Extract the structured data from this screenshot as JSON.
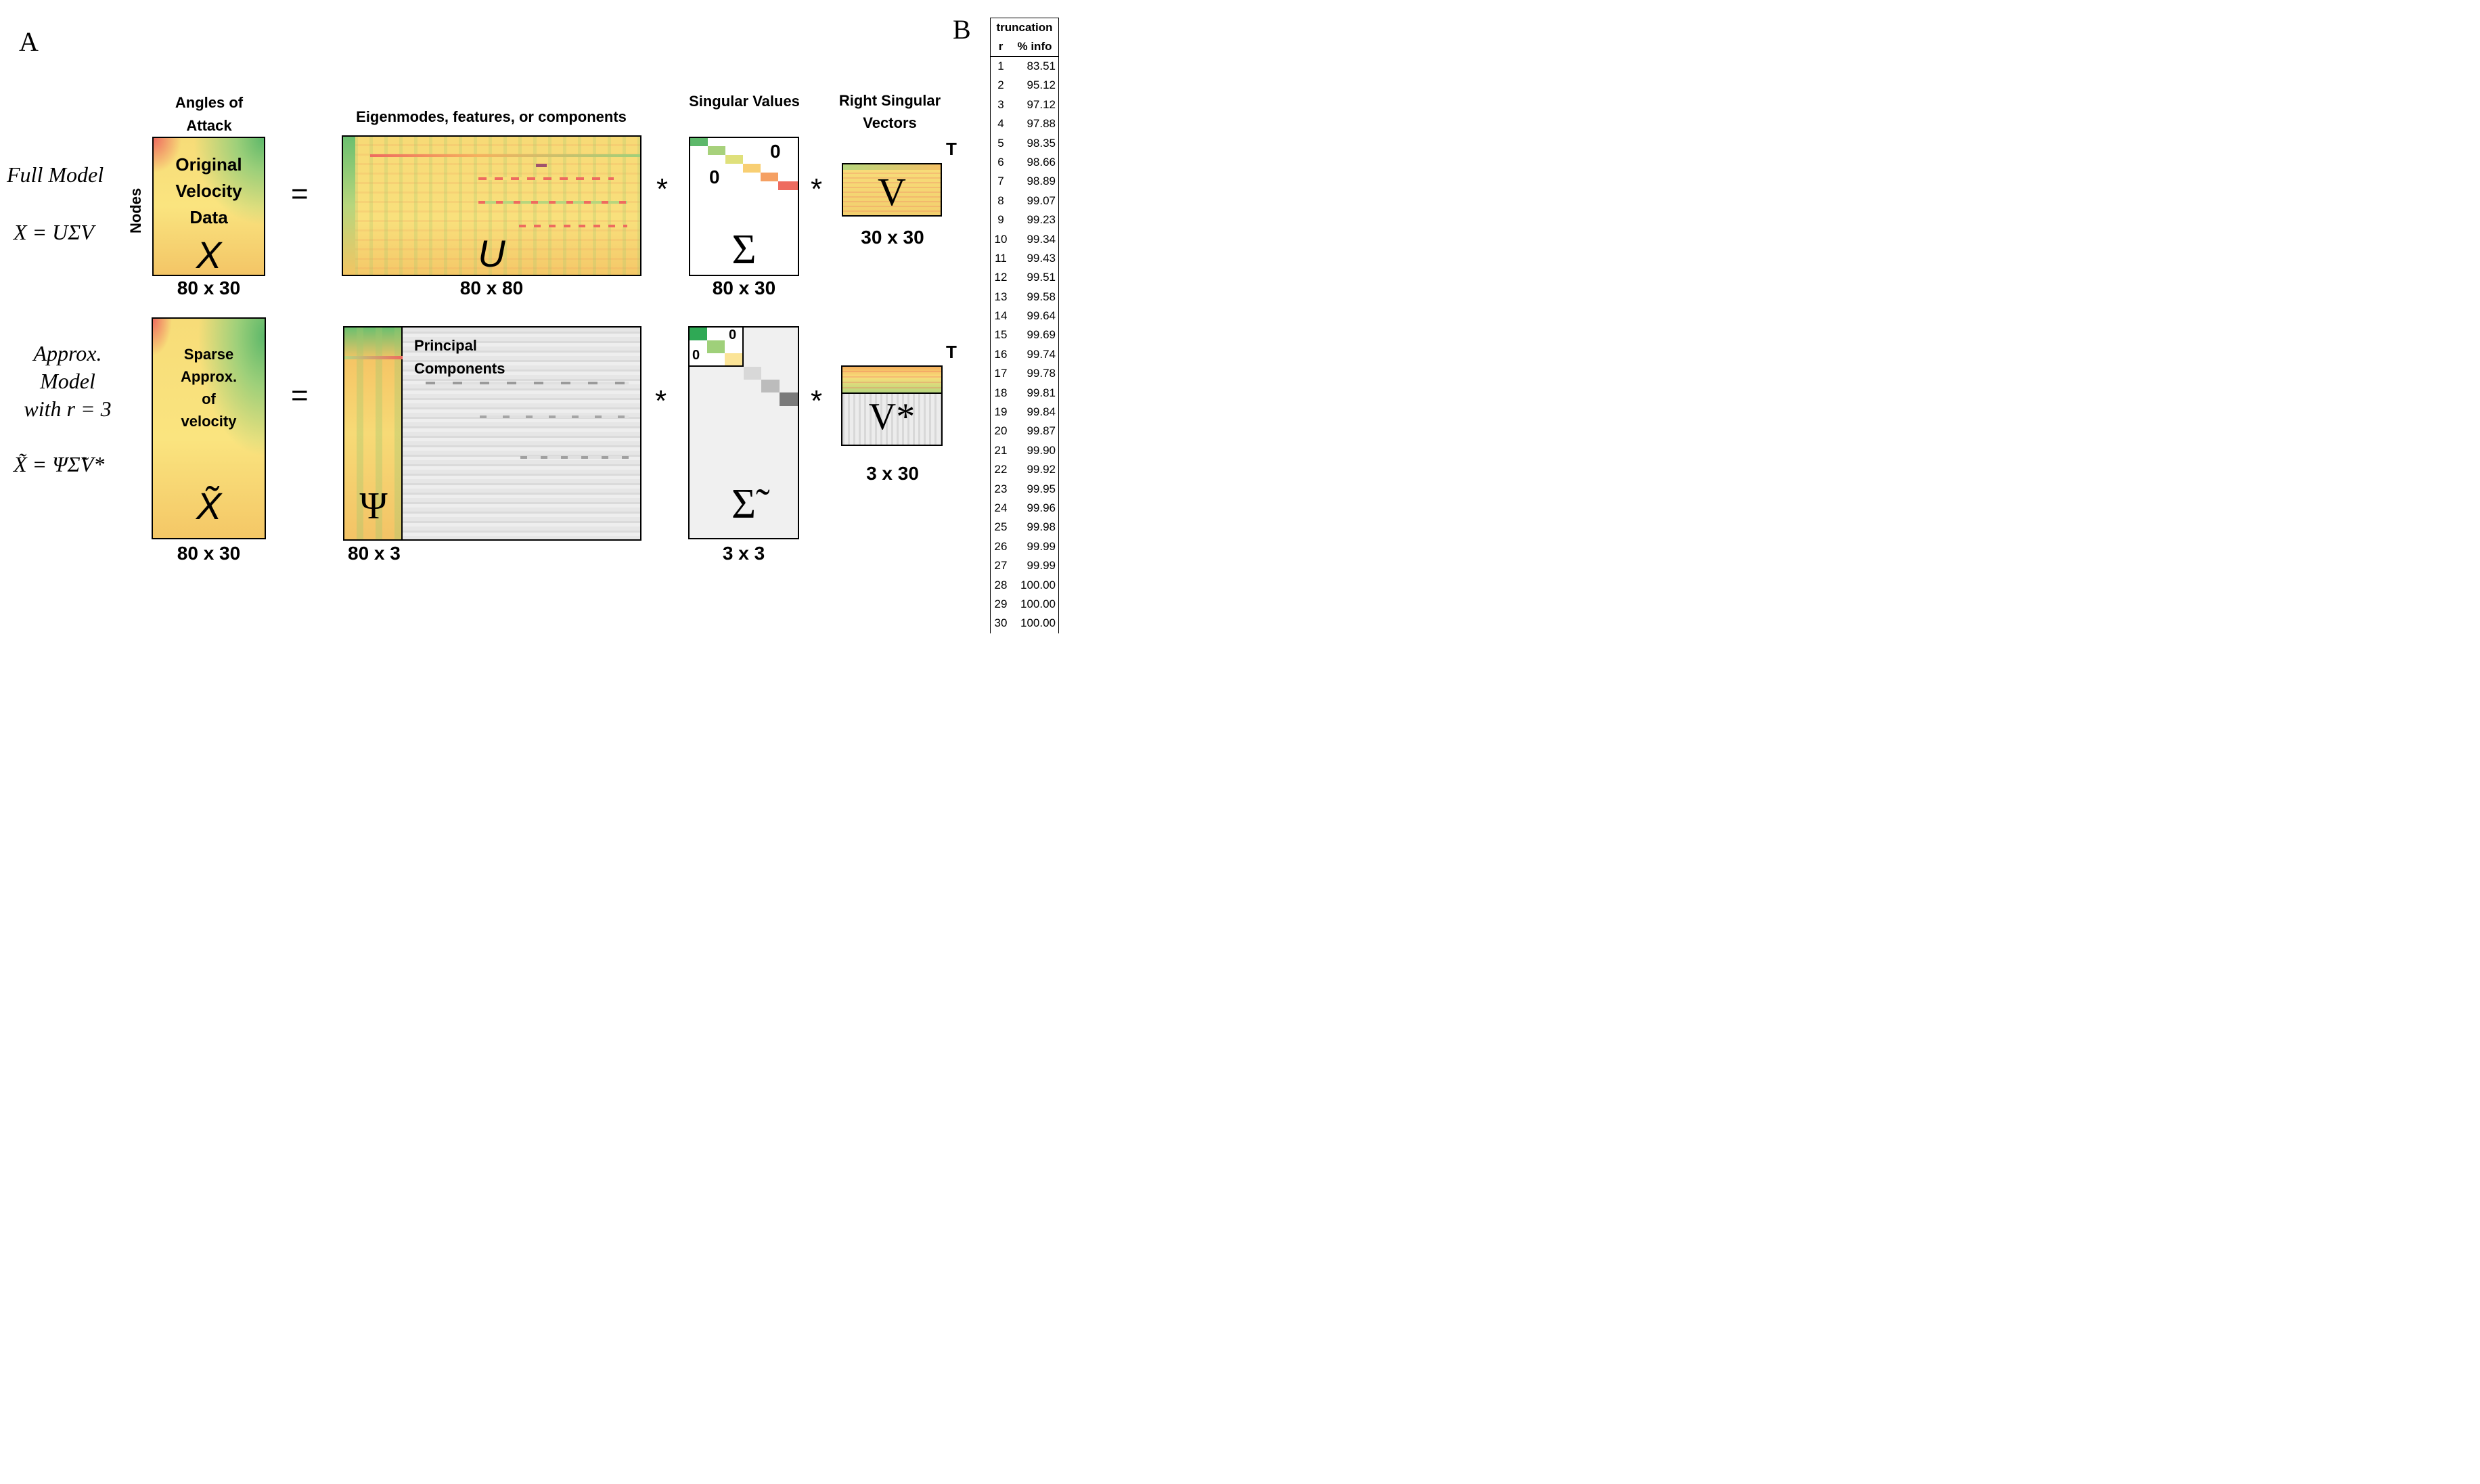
{
  "panel_a_label": "A",
  "panel_b_label": "B",
  "full_model": {
    "row_title": "Full Model",
    "equation": "X = UΣV",
    "x_header": "Angles of Attack",
    "x_side_label": "Nodes",
    "x_inner": [
      "Original",
      "Velocity",
      "Data"
    ],
    "x_symbol": "X",
    "x_dim": "80 x 30",
    "equals": "=",
    "u_header": "Eigenmodes, features, or components",
    "u_symbol": "U",
    "u_dim": "80 x 80",
    "times1": "*",
    "s_header": "Singular Values",
    "s_zero_upper": "0",
    "s_zero_lower": "0",
    "s_symbol": "Σ",
    "s_dim": "80 x 30",
    "times2": "*",
    "v_header": "Right Singular Vectors",
    "v_transpose": "T",
    "v_symbol": "V",
    "v_dim": "30 x 30"
  },
  "approx_model": {
    "row_title_1": "Approx.",
    "row_title_2": "Model",
    "row_title_3": "with r = 3",
    "equation": "X̃ = ΨΣ̃V*",
    "x_inner": [
      "Sparse",
      "Approx.",
      "of",
      "velocity"
    ],
    "x_symbol": "X̃",
    "x_dim": "80 x 30",
    "equals": "=",
    "psi_symbol": "Ψ",
    "pc_label_1": "Principal",
    "pc_label_2": "Components",
    "psi_dim": "80 x 3",
    "times1": "*",
    "s_zero_upper": "0",
    "s_zero_lower": "0",
    "s_symbol": "Σ̃",
    "s_dim": "3 x 3",
    "times2": "*",
    "v_transpose": "T",
    "v_symbol": "V*",
    "v_dim": "3 x 30"
  },
  "truncation_table": {
    "title": "truncation",
    "col_r": "r",
    "col_info": "% info",
    "rows": [
      [
        "1",
        "83.51"
      ],
      [
        "2",
        "95.12"
      ],
      [
        "3",
        "97.12"
      ],
      [
        "4",
        "97.88"
      ],
      [
        "5",
        "98.35"
      ],
      [
        "6",
        "98.66"
      ],
      [
        "7",
        "98.89"
      ],
      [
        "8",
        "99.07"
      ],
      [
        "9",
        "99.23"
      ],
      [
        "10",
        "99.34"
      ],
      [
        "11",
        "99.43"
      ],
      [
        "12",
        "99.51"
      ],
      [
        "13",
        "99.58"
      ],
      [
        "14",
        "99.64"
      ],
      [
        "15",
        "99.69"
      ],
      [
        "16",
        "99.74"
      ],
      [
        "17",
        "99.78"
      ],
      [
        "18",
        "99.81"
      ],
      [
        "19",
        "99.84"
      ],
      [
        "20",
        "99.87"
      ],
      [
        "21",
        "99.90"
      ],
      [
        "22",
        "99.92"
      ],
      [
        "23",
        "99.95"
      ],
      [
        "24",
        "99.96"
      ],
      [
        "25",
        "99.98"
      ],
      [
        "26",
        "99.99"
      ],
      [
        "27",
        "99.99"
      ],
      [
        "28",
        "100.00"
      ],
      [
        "29",
        "100.00"
      ],
      [
        "30",
        "100.00"
      ]
    ]
  },
  "colors": {
    "green": "#5db86a",
    "yellow": "#f8de7a",
    "orange": "#f5b15e",
    "red": "#ee6b5f",
    "gray": "#e5e5e5"
  }
}
